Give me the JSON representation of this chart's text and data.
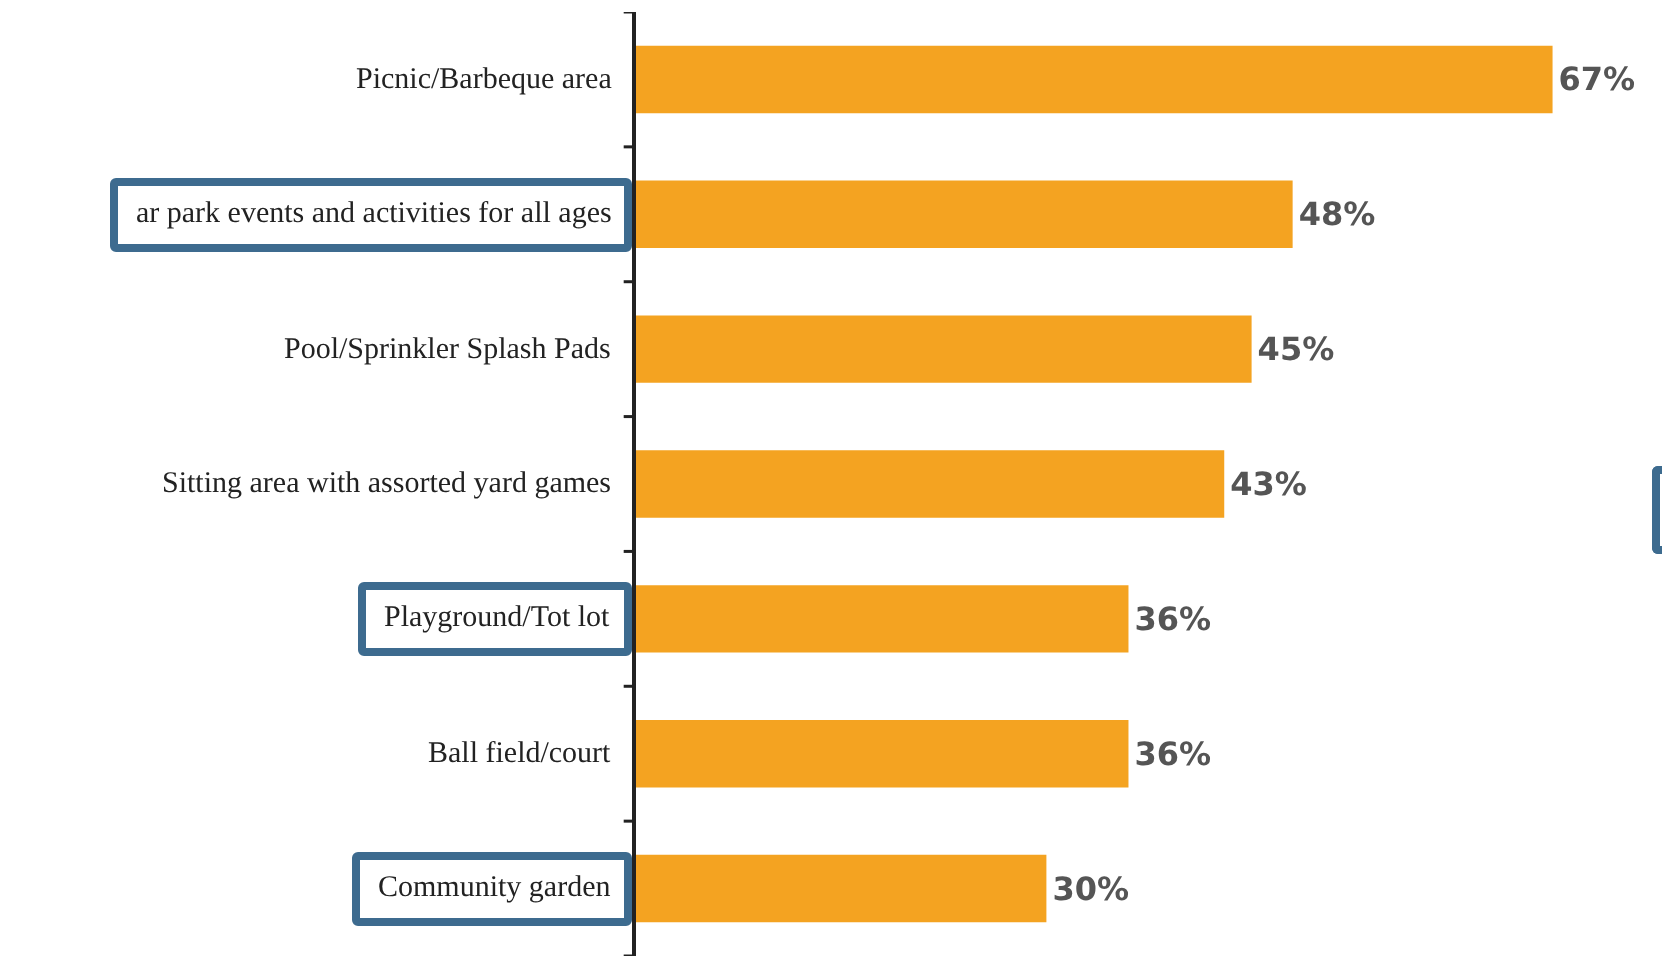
{
  "chart_data": {
    "type": "bar",
    "orientation": "horizontal",
    "categories": [
      "Picnic/Barbeque area",
      "ar park events and activities for all ages",
      "Pool/Sprinkler Splash Pads",
      "Sitting area with assorted yard games",
      "Playground/Tot lot",
      "Ball field/court",
      "Community garden"
    ],
    "values": [
      67,
      48,
      45,
      43,
      36,
      36,
      30
    ],
    "value_labels": [
      "67%",
      "48%",
      "45%",
      "43%",
      "36%",
      "36%",
      "30%"
    ],
    "color": "#f4a321",
    "xlim": [
      0,
      75
    ],
    "tick_labels": "y"
  }
}
